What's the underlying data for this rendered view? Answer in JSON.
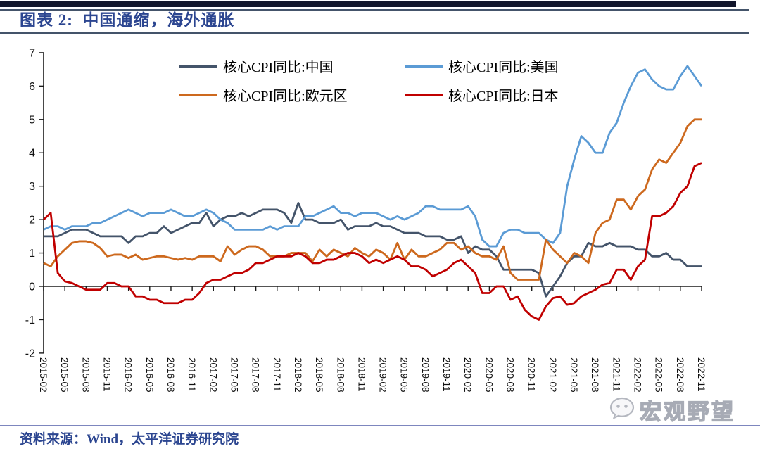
{
  "header": {
    "title": "图表 2:  中国通缩，海外通胀"
  },
  "footer": {
    "source": "资料来源：Wind，太平洋证券研究院"
  },
  "watermark": {
    "text": "宏观野望",
    "icon": "wechat-chat-bubble"
  },
  "chart_data": {
    "type": "line",
    "title": "图表 2: 中国通缩，海外通胀",
    "xlabel": "",
    "ylabel": "",
    "ylim": [
      -2,
      7
    ],
    "y_ticks": [
      7,
      6,
      5,
      4,
      3,
      2,
      1,
      0,
      -1,
      -2
    ],
    "grid": false,
    "legend_position": "top-inside",
    "axis_color": "#1a1a1a",
    "x": [
      "2015-02",
      "2015-03",
      "2015-04",
      "2015-05",
      "2015-06",
      "2015-07",
      "2015-08",
      "2015-09",
      "2015-10",
      "2015-11",
      "2015-12",
      "2016-01",
      "2016-02",
      "2016-03",
      "2016-04",
      "2016-05",
      "2016-06",
      "2016-07",
      "2016-08",
      "2016-09",
      "2016-10",
      "2016-11",
      "2016-12",
      "2017-01",
      "2017-02",
      "2017-03",
      "2017-04",
      "2017-05",
      "2017-06",
      "2017-07",
      "2017-08",
      "2017-09",
      "2017-10",
      "2017-11",
      "2017-12",
      "2018-01",
      "2018-02",
      "2018-03",
      "2018-04",
      "2018-05",
      "2018-06",
      "2018-07",
      "2018-08",
      "2018-09",
      "2018-10",
      "2018-11",
      "2018-12",
      "2019-01",
      "2019-02",
      "2019-03",
      "2019-04",
      "2019-05",
      "2019-06",
      "2019-07",
      "2019-08",
      "2019-09",
      "2019-10",
      "2019-11",
      "2019-12",
      "2020-01",
      "2020-02",
      "2020-03",
      "2020-04",
      "2020-05",
      "2020-06",
      "2020-07",
      "2020-08",
      "2020-09",
      "2020-10",
      "2020-11",
      "2020-12",
      "2021-01",
      "2021-02",
      "2021-03",
      "2021-04",
      "2021-05",
      "2021-06",
      "2021-07",
      "2021-08",
      "2021-09",
      "2021-10",
      "2021-11",
      "2021-12",
      "2022-01",
      "2022-02",
      "2022-03",
      "2022-04",
      "2022-05",
      "2022-06",
      "2022-07",
      "2022-08",
      "2022-09",
      "2022-10",
      "2022-11"
    ],
    "x_tick_labels": [
      "2015-02",
      "2015-05",
      "2015-08",
      "2015-11",
      "2016-02",
      "2016-05",
      "2016-08",
      "2016-11",
      "2017-02",
      "2017-05",
      "2017-08",
      "2017-11",
      "2018-02",
      "2018-05",
      "2018-08",
      "2018-11",
      "2019-02",
      "2019-05",
      "2019-08",
      "2019-11",
      "2020-02",
      "2020-05",
      "2020-08",
      "2020-11",
      "2021-02",
      "2021-05",
      "2021-08",
      "2021-11",
      "2022-02",
      "2022-05",
      "2022-08",
      "2022-11"
    ],
    "series": [
      {
        "name": "核心CPI同比:中国",
        "color": "#44546A",
        "values": [
          1.5,
          1.5,
          1.5,
          1.6,
          1.7,
          1.7,
          1.7,
          1.6,
          1.5,
          1.5,
          1.5,
          1.5,
          1.3,
          1.5,
          1.5,
          1.6,
          1.6,
          1.8,
          1.6,
          1.7,
          1.8,
          1.9,
          1.9,
          2.2,
          1.8,
          2.0,
          2.1,
          2.1,
          2.2,
          2.1,
          2.2,
          2.3,
          2.3,
          2.3,
          2.2,
          1.9,
          2.5,
          2.0,
          2.0,
          1.9,
          1.9,
          1.9,
          2.0,
          1.7,
          1.8,
          1.8,
          1.8,
          1.9,
          1.8,
          1.8,
          1.7,
          1.6,
          1.6,
          1.6,
          1.5,
          1.5,
          1.5,
          1.4,
          1.4,
          1.5,
          1.0,
          1.2,
          1.1,
          1.1,
          0.9,
          0.5,
          0.5,
          0.5,
          0.5,
          0.5,
          0.4,
          -0.3,
          0.0,
          0.3,
          0.7,
          0.9,
          0.9,
          1.3,
          1.2,
          1.2,
          1.3,
          1.2,
          1.2,
          1.2,
          1.1,
          1.1,
          0.9,
          0.9,
          1.0,
          0.8,
          0.8,
          0.6,
          0.6,
          0.6
        ]
      },
      {
        "name": "核心CPI同比:美国",
        "color": "#5B9BD5",
        "values": [
          1.7,
          1.8,
          1.8,
          1.7,
          1.8,
          1.8,
          1.8,
          1.9,
          1.9,
          2.0,
          2.1,
          2.2,
          2.3,
          2.2,
          2.1,
          2.2,
          2.2,
          2.2,
          2.3,
          2.2,
          2.1,
          2.1,
          2.2,
          2.3,
          2.2,
          2.0,
          1.9,
          1.7,
          1.7,
          1.7,
          1.7,
          1.7,
          1.8,
          1.7,
          1.8,
          1.8,
          1.8,
          2.1,
          2.1,
          2.2,
          2.3,
          2.4,
          2.2,
          2.2,
          2.1,
          2.2,
          2.2,
          2.2,
          2.1,
          2.0,
          2.1,
          2.0,
          2.1,
          2.2,
          2.4,
          2.4,
          2.3,
          2.3,
          2.3,
          2.3,
          2.4,
          2.1,
          1.4,
          1.2,
          1.2,
          1.6,
          1.7,
          1.7,
          1.6,
          1.6,
          1.6,
          1.4,
          1.3,
          1.6,
          3.0,
          3.8,
          4.5,
          4.3,
          4.0,
          4.0,
          4.6,
          4.9,
          5.5,
          6.0,
          6.4,
          6.5,
          6.2,
          6.0,
          5.9,
          5.9,
          6.3,
          6.6,
          6.3,
          6.0
        ]
      },
      {
        "name": "核心CPI同比:欧元区",
        "color": "#CD691E",
        "values": [
          0.7,
          0.6,
          0.9,
          1.1,
          1.3,
          1.35,
          1.35,
          1.3,
          1.15,
          0.9,
          0.95,
          0.95,
          0.85,
          0.95,
          0.8,
          0.85,
          0.9,
          0.9,
          0.85,
          0.8,
          0.85,
          0.8,
          0.9,
          0.9,
          0.9,
          0.75,
          1.2,
          0.95,
          1.1,
          1.2,
          1.2,
          1.1,
          0.9,
          0.9,
          0.9,
          1.0,
          1.0,
          1.0,
          0.75,
          1.1,
          0.9,
          1.1,
          1.0,
          0.9,
          1.15,
          1.0,
          0.9,
          1.1,
          1.0,
          0.8,
          1.3,
          0.8,
          1.1,
          0.9,
          0.9,
          1.0,
          1.1,
          1.3,
          1.3,
          1.1,
          1.2,
          1.0,
          0.9,
          0.9,
          0.8,
          1.2,
          0.4,
          0.2,
          0.2,
          0.2,
          0.2,
          1.4,
          1.1,
          0.9,
          0.7,
          1.0,
          0.9,
          0.7,
          1.6,
          1.9,
          2.0,
          2.6,
          2.6,
          2.3,
          2.7,
          2.9,
          3.5,
          3.8,
          3.7,
          4.0,
          4.3,
          4.8,
          5.0,
          5.0
        ]
      },
      {
        "name": "核心CPI同比:日本",
        "color": "#C00000",
        "values": [
          2.0,
          2.2,
          0.4,
          0.15,
          0.1,
          0.0,
          -0.1,
          -0.1,
          -0.1,
          0.1,
          0.1,
          0.0,
          0.0,
          -0.3,
          -0.3,
          -0.4,
          -0.4,
          -0.5,
          -0.5,
          -0.5,
          -0.4,
          -0.4,
          -0.2,
          0.1,
          0.2,
          0.2,
          0.3,
          0.4,
          0.4,
          0.5,
          0.7,
          0.7,
          0.8,
          0.9,
          0.9,
          0.9,
          1.0,
          0.9,
          0.7,
          0.7,
          0.8,
          0.8,
          0.9,
          1.0,
          1.0,
          0.9,
          0.7,
          0.8,
          0.7,
          0.8,
          0.9,
          0.8,
          0.6,
          0.6,
          0.5,
          0.3,
          0.4,
          0.5,
          0.7,
          0.8,
          0.6,
          0.4,
          -0.2,
          -0.2,
          0.0,
          0.0,
          -0.4,
          -0.3,
          -0.7,
          -0.9,
          -1.0,
          -0.6,
          -0.35,
          -0.3,
          -0.55,
          -0.5,
          -0.3,
          -0.2,
          -0.1,
          0.05,
          0.1,
          0.5,
          0.5,
          0.2,
          0.6,
          0.8,
          2.1,
          2.1,
          2.2,
          2.4,
          2.8,
          3.0,
          3.6,
          3.7
        ]
      }
    ]
  }
}
